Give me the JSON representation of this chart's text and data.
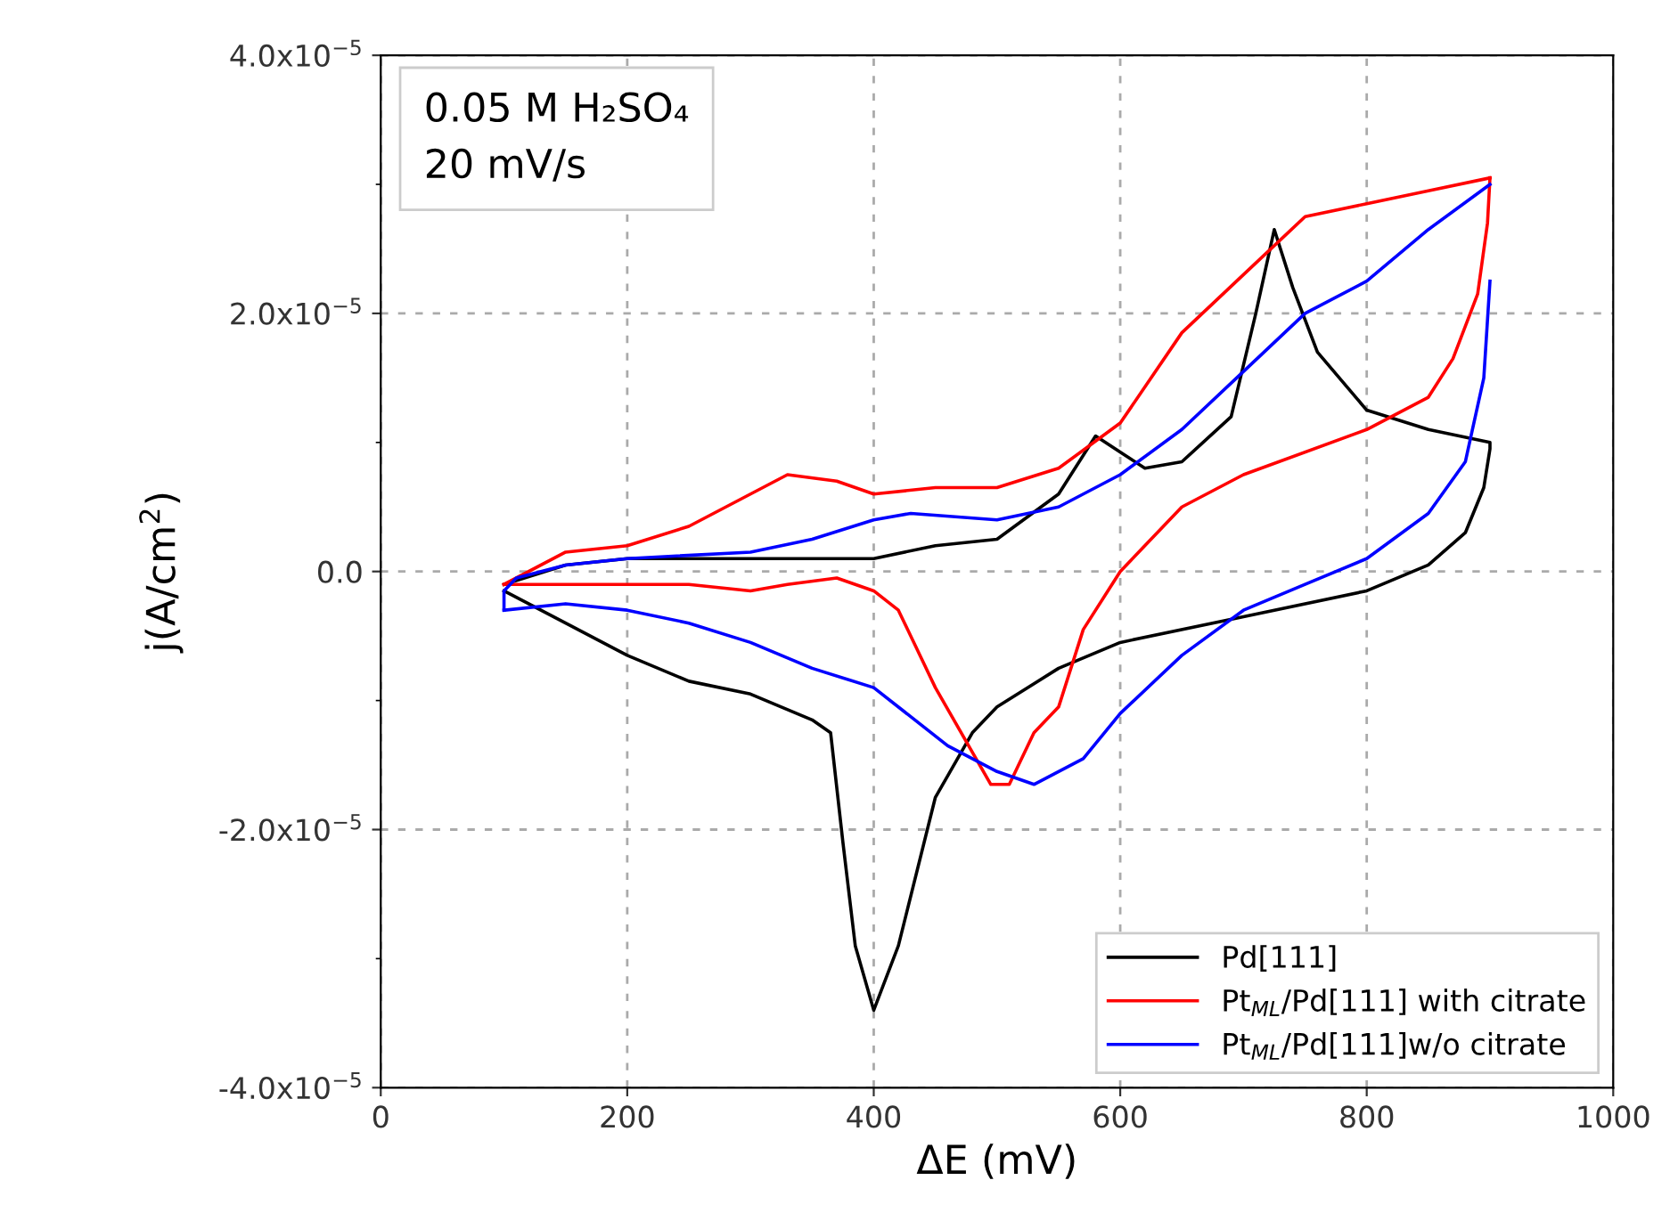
{
  "chart_data": {
    "type": "line",
    "xlabel": "ΔE (mV)",
    "ylabel": "j(A/cm$^{2}$)",
    "annotations": [
      "0.05 M H₂SO₄",
      "20 mV/s"
    ],
    "xlim": [
      0,
      1000
    ],
    "xticks": [
      0,
      200,
      400,
      600,
      800,
      1000
    ],
    "ylim": [
      -4e-05,
      4e-05
    ],
    "yticks": [
      {
        "value": -4e-05,
        "label": "-4.0x10$^{−5}$"
      },
      {
        "value": -3e-05,
        "label": null
      },
      {
        "value": -2e-05,
        "label": "-2.0x10$^{−5}$"
      },
      {
        "value": -1e-05,
        "label": null
      },
      {
        "value": 0,
        "label": "0.0"
      },
      {
        "value": 1e-05,
        "label": null
      },
      {
        "value": 2e-05,
        "label": "2.0x10$^{−5}$"
      },
      {
        "value": 3e-05,
        "label": null
      },
      {
        "value": 4e-05,
        "label": "4.0x10$^{−5}$"
      }
    ],
    "grid": true,
    "legend": "bottom right",
    "line_style": "solid",
    "marker": "none",
    "series": [
      {
        "name": "Pd[111]",
        "color": "#000000",
        "x": [
          100,
          150,
          200,
          400,
          450,
          500,
          550,
          580,
          620,
          650,
          690,
          710,
          725,
          740,
          760,
          800,
          850,
          900,
          900,
          895,
          880,
          850,
          800,
          700,
          600,
          550,
          500,
          480,
          450,
          420,
          400,
          385,
          375,
          365,
          350,
          300,
          250,
          200,
          150,
          100
        ],
        "values": [
          -1e-06,
          5e-07,
          1e-06,
          1e-06,
          2e-06,
          2.5e-06,
          6e-06,
          1.05e-05,
          8e-06,
          8.5e-06,
          1.2e-05,
          2e-05,
          2.65e-05,
          2.2e-05,
          1.7e-05,
          1.25e-05,
          1.1e-05,
          1e-05,
          9.5e-06,
          6.5e-06,
          3e-06,
          5e-07,
          -1.5e-06,
          -3.5e-06,
          -5.5e-06,
          -7.5e-06,
          -1.05e-05,
          -1.25e-05,
          -1.75e-05,
          -2.9e-05,
          -3.4e-05,
          -2.9e-05,
          -2.1e-05,
          -1.25e-05,
          -1.15e-05,
          -9.5e-06,
          -8.5e-06,
          -6.5e-06,
          -4e-06,
          -1.5e-06
        ]
      },
      {
        "name": "Pt$_{ML}$/Pd[111] with citrate",
        "color": "#ff0000",
        "x": [
          100,
          150,
          200,
          250,
          300,
          330,
          370,
          400,
          450,
          500,
          550,
          600,
          650,
          700,
          750,
          800,
          850,
          900
        ],
        "values": [
          -1e-06,
          1.5e-06,
          2e-06,
          3.5e-06,
          6e-06,
          7.5e-06,
          7e-06,
          6e-06,
          6.5e-06,
          6.5e-06,
          8e-06,
          1.15e-05,
          1.85e-05,
          2.3e-05,
          2.75e-05,
          2.85e-05,
          2.95e-05,
          3.05e-05
        ]
      },
      {
        "color": "#ff0000",
        "x": [
          900,
          898,
          890,
          870,
          850,
          800,
          700,
          650,
          600,
          570,
          550,
          530,
          510,
          495,
          480,
          450,
          420,
          400,
          370,
          330,
          300,
          250,
          200,
          150,
          100
        ],
        "values": [
          3.05e-05,
          2.7e-05,
          2.15e-05,
          1.65e-05,
          1.35e-05,
          1.1e-05,
          7.5e-06,
          5e-06,
          0.0,
          -4.5e-06,
          -1.05e-05,
          -1.25e-05,
          -1.65e-05,
          -1.65e-05,
          -1.4e-05,
          -9e-06,
          -3e-06,
          -1.5e-06,
          -5e-07,
          -1e-06,
          -1.5e-06,
          -1e-06,
          -1e-06,
          -1e-06,
          -1e-06
        ]
      },
      {
        "name": "Pt$_{ML}$/Pd[111]w/o citrate",
        "color": "#0000ff",
        "x": [
          100,
          100,
          110,
          150,
          200,
          300,
          350,
          400,
          430,
          500,
          550,
          600,
          650,
          700,
          750,
          800,
          850,
          900
        ],
        "values": [
          -3e-06,
          -1.5e-06,
          -5e-07,
          5e-07,
          1e-06,
          1.5e-06,
          2.5e-06,
          4e-06,
          4.5e-06,
          4e-06,
          5e-06,
          7.5e-06,
          1.1e-05,
          1.55e-05,
          2e-05,
          2.25e-05,
          2.65e-05,
          3e-05
        ]
      },
      {
        "color": "#0000ff",
        "x": [
          900,
          895,
          880,
          850,
          800,
          750,
          700,
          650,
          600,
          570,
          530,
          500,
          460,
          400,
          350,
          300,
          250,
          200,
          150,
          100
        ],
        "values": [
          2.25e-05,
          1.5e-05,
          8.5e-06,
          4.5e-06,
          1e-06,
          -1e-06,
          -3e-06,
          -6.5e-06,
          -1.1e-05,
          -1.45e-05,
          -1.65e-05,
          -1.55e-05,
          -1.35e-05,
          -9e-06,
          -7.5e-06,
          -5.5e-06,
          -4e-06,
          -3e-06,
          -2.5e-06,
          -3e-06
        ]
      }
    ]
  }
}
